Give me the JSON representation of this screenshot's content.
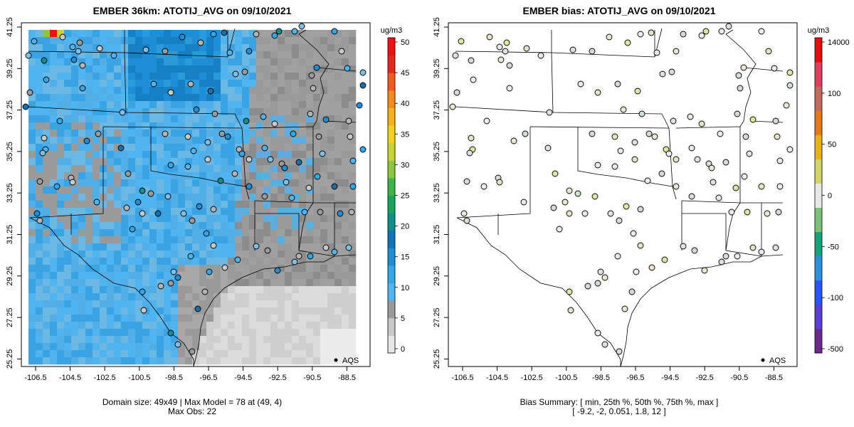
{
  "panels": [
    {
      "title": "EMBER 36km: ATOTIJ_AVG on 09/10/2021",
      "caption_lines": [
        "Domain size: 49x49 | Max Model = 78 at (49, 4)",
        "Max Obs: 22"
      ],
      "legend_label": "AQS",
      "colorbar": {
        "unit": "ug/m3",
        "ticks": [
          "0",
          "5",
          "10",
          "15",
          "20",
          "25",
          "30",
          "35",
          "40",
          "45",
          "50"
        ],
        "colors": [
          "#e6e6e6",
          "#c8c8c8",
          "#9a9a9a",
          "#4fb4f0",
          "#33a7e8",
          "#1e8fd6",
          "#0f75b8",
          "#0e8f8a",
          "#19a35a",
          "#3db54a",
          "#8cc63f",
          "#c8d230",
          "#f2d11a",
          "#f7b21a",
          "#f48a1c",
          "#ef5a1f",
          "#e8281f",
          "#f01010"
        ]
      }
    },
    {
      "title": "EMBER bias: ATOTIJ_AVG on 09/10/2021",
      "caption_lines": [
        "Bias Summary: [ min, 25th %, 50th %, 75th %, max ]",
        "[ -9.2,   -2,   0.051,   1.8,    12 ]"
      ],
      "legend_label": "AQS",
      "colorbar": {
        "unit": "ug/m3",
        "ticks": [
          "-500",
          "-100",
          "-50",
          "0",
          "50",
          "100",
          "14000"
        ],
        "colors": [
          "#6a2a8a",
          "#5b3fd1",
          "#2a55f0",
          "#2f8fd8",
          "#1aa07a",
          "#7cc07a",
          "#e8e8e8",
          "#d2d26a",
          "#e4b020",
          "#e07a20",
          "#c06a60",
          "#d84060",
          "#e01010"
        ]
      }
    }
  ],
  "axes": {
    "x_ticks": [
      "-106.5",
      "-104.5",
      "-102.5",
      "-100.5",
      "-98.5",
      "-96.5",
      "-94.5",
      "-92.5",
      "-90.5",
      "-88.5"
    ],
    "y_ticks": [
      "41.25",
      "39.25",
      "37.25",
      "35.25",
      "33.25",
      "31.25",
      "29.25",
      "27.25",
      "25.25"
    ],
    "x_range": [
      -107.5,
      -88.0
    ],
    "y_range": [
      25.25,
      41.75
    ]
  }
}
